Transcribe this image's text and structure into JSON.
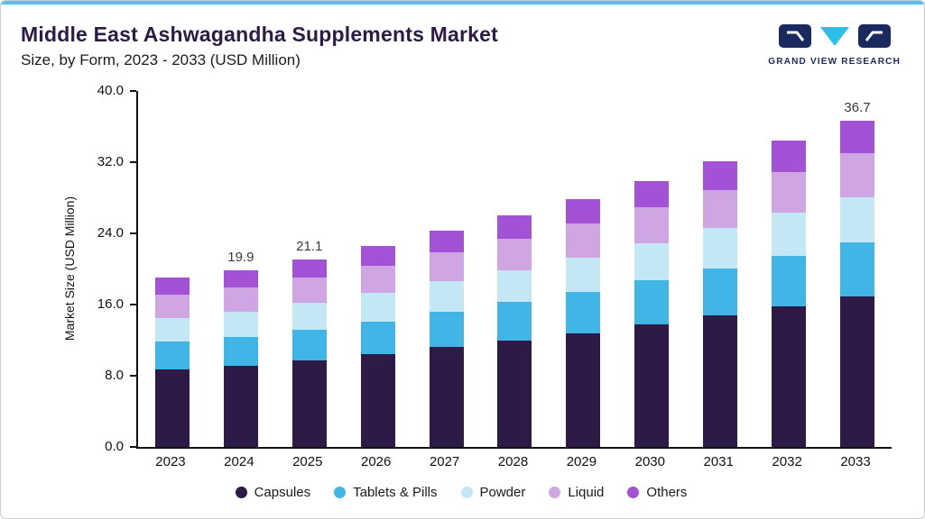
{
  "page": {
    "top_accent_color": "#56c1ea"
  },
  "logo": {
    "text": "GRAND VIEW RESEARCH",
    "navy": "#1b2a5e",
    "cyan": "#2bc1e6"
  },
  "chart_data": {
    "type": "bar",
    "stacked": true,
    "title": "Middle East Ashwagandha Supplements Market",
    "subtitle": "Size, by Form, 2023 - 2033 (USD Million)",
    "ylabel": "Market Size (USD Million)",
    "ylim": [
      0,
      40
    ],
    "yticks": [
      0,
      8,
      16,
      24,
      32,
      40
    ],
    "grid": false,
    "legend_position": "bottom",
    "categories": [
      "2023",
      "2024",
      "2025",
      "2026",
      "2027",
      "2028",
      "2029",
      "2030",
      "2031",
      "2032",
      "2033"
    ],
    "series": [
      {
        "name": "Capsules",
        "color": "#2E1A47",
        "values": [
          8.7,
          9.1,
          9.7,
          10.4,
          11.2,
          12.0,
          12.8,
          13.8,
          14.8,
          15.8,
          16.9
        ]
      },
      {
        "name": "Tablets & Pills",
        "color": "#41B6E6",
        "values": [
          3.1,
          3.3,
          3.5,
          3.7,
          4.0,
          4.3,
          4.6,
          4.9,
          5.3,
          5.7,
          6.1
        ]
      },
      {
        "name": "Powder",
        "color": "#C4E7F6",
        "values": [
          2.7,
          2.8,
          3.0,
          3.2,
          3.4,
          3.6,
          3.9,
          4.2,
          4.5,
          4.8,
          5.1
        ]
      },
      {
        "name": "Liquid",
        "color": "#D0A5E4",
        "values": [
          2.6,
          2.7,
          2.8,
          3.1,
          3.3,
          3.5,
          3.8,
          4.0,
          4.3,
          4.6,
          4.9
        ]
      },
      {
        "name": "Others",
        "color": "#A352D8",
        "values": [
          1.9,
          2.0,
          2.1,
          2.2,
          2.4,
          2.6,
          2.8,
          3.0,
          3.2,
          3.5,
          3.7
        ]
      }
    ],
    "totals": [
      19.0,
      19.9,
      21.1,
      22.6,
      24.3,
      26.0,
      27.9,
      29.9,
      32.1,
      34.4,
      36.7
    ],
    "bar_labels": {
      "2024": "19.9",
      "2025": "21.1",
      "2033": "36.7"
    }
  }
}
